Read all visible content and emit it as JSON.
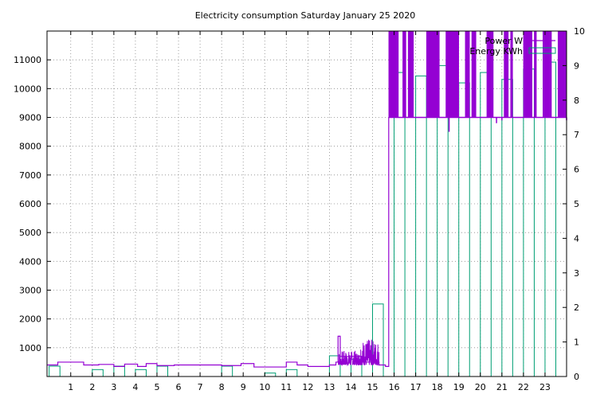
{
  "chart_data": {
    "type": "bar",
    "title": "Electricity consumption Saturday January 25 2020",
    "xlim": [
      -0.1,
      24
    ],
    "x_ticks": [
      1,
      2,
      3,
      4,
      5,
      6,
      7,
      8,
      9,
      10,
      11,
      12,
      13,
      14,
      15,
      16,
      17,
      18,
      19,
      20,
      21,
      22,
      23
    ],
    "y_left": {
      "ylim": [
        0,
        12000
      ],
      "ticks": [
        1000,
        2000,
        3000,
        4000,
        5000,
        6000,
        7000,
        8000,
        9000,
        10000,
        11000
      ]
    },
    "y_right": {
      "ylim": [
        0,
        10
      ],
      "ticks": [
        0,
        1,
        2,
        3,
        4,
        5,
        6,
        7,
        8,
        9,
        10
      ]
    },
    "grid": true,
    "legend_position": "top-right",
    "colors": {
      "power": "#9400d3",
      "energy": "#009e73",
      "frame": "#000000"
    },
    "series": [
      {
        "name": "Power W",
        "axis": "left",
        "style": "line",
        "steps": [
          [
            -0.1,
            400
          ],
          [
            0.4,
            500
          ],
          [
            0.9,
            500
          ],
          [
            1.6,
            400
          ],
          [
            2.3,
            420
          ],
          [
            3.0,
            350
          ],
          [
            3.5,
            430
          ],
          [
            4.1,
            350
          ],
          [
            4.5,
            450
          ],
          [
            5.0,
            380
          ],
          [
            5.8,
            400
          ],
          [
            8.0,
            380
          ],
          [
            8.9,
            450
          ],
          [
            9.5,
            330
          ],
          [
            11.0,
            500
          ],
          [
            11.5,
            400
          ],
          [
            12.0,
            350
          ],
          [
            13.0,
            400
          ],
          [
            13.3,
            500
          ],
          [
            13.4,
            1400
          ],
          [
            13.5,
            700
          ],
          [
            14.5,
            500
          ],
          [
            15.3,
            400
          ],
          [
            15.6,
            350
          ],
          [
            15.75,
            9000
          ]
        ],
        "noise_ranges": [
          {
            "x": [
              13.4,
              14.4
            ],
            "low": 400,
            "high": 900
          },
          {
            "x": [
              14.4,
              15.3
            ],
            "low": 400,
            "high": 1300
          }
        ],
        "blocks": [
          [
            15.75,
            16.2
          ],
          [
            16.4,
            16.55
          ],
          [
            16.65,
            16.9
          ],
          [
            17.5,
            18.1
          ],
          [
            18.4,
            19.0
          ],
          [
            19.3,
            19.5
          ],
          [
            19.6,
            19.8
          ],
          [
            20.3,
            20.6
          ],
          [
            21.1,
            21.3
          ],
          [
            21.4,
            21.5
          ],
          [
            22.0,
            22.4
          ],
          [
            22.5,
            22.6
          ],
          [
            22.9,
            23.3
          ],
          [
            23.6,
            24.0
          ]
        ],
        "block_low": 9000,
        "block_high": 12000,
        "dips": [
          [
            18.55,
            8500
          ],
          [
            20.75,
            8800
          ],
          [
            21.0,
            8900
          ],
          [
            24.0,
            8900
          ]
        ]
      },
      {
        "name": "Energy KWh",
        "axis": "right",
        "style": "bar",
        "x": [
          0,
          1,
          2,
          3,
          4,
          5,
          6,
          7,
          8,
          9,
          10,
          11,
          12,
          13,
          14,
          15,
          16,
          17,
          18,
          19,
          20,
          21,
          22,
          23
        ],
        "values": [
          0.3,
          0.0,
          0.2,
          0.3,
          0.2,
          0.3,
          0.0,
          0.0,
          0.3,
          0.0,
          0.1,
          0.2,
          0.0,
          0.6,
          0.5,
          2.1,
          8.8,
          8.7,
          9.0,
          8.5,
          8.8,
          8.6,
          8.9,
          9.1
        ],
        "bar_width": 0.5
      }
    ]
  }
}
